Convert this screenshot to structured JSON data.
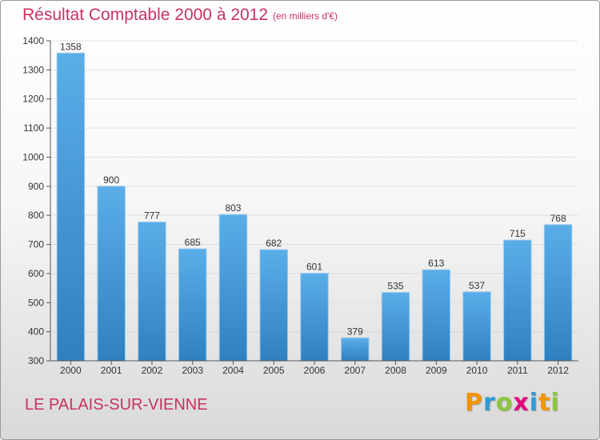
{
  "header": {
    "title": "Résultat Comptable 2000 à 2012",
    "subtitle": "(en milliers d'€)"
  },
  "footer": {
    "commune": "LE PALAIS-SUR-VIENNE",
    "logo": {
      "letters": [
        "P",
        "r",
        "o",
        "x",
        "i",
        "t",
        "i"
      ],
      "colors": [
        "#f29400",
        "#2c9bd6",
        "#8cc63f",
        "#e4007c",
        "#2c9bd6",
        "#f29400",
        "#8cc63f"
      ]
    }
  },
  "colors": {
    "accent": "#c8325e",
    "bar_light": "#5aaee8",
    "bar_dark": "#2f80c0"
  },
  "chart_data": {
    "type": "bar",
    "title": "Résultat Comptable 2000 à 2012",
    "subtitle": "(en milliers d'€)",
    "categories": [
      "2000",
      "2001",
      "2002",
      "2003",
      "2004",
      "2005",
      "2006",
      "2007",
      "2008",
      "2009",
      "2010",
      "2011",
      "2012"
    ],
    "values": [
      1358,
      900,
      777,
      685,
      803,
      682,
      601,
      379,
      535,
      613,
      537,
      715,
      768
    ],
    "ylim": [
      300,
      1400
    ],
    "yticks": [
      300,
      400,
      500,
      600,
      700,
      800,
      900,
      1000,
      1100,
      1200,
      1300,
      1400
    ],
    "grid": true,
    "data_labels": true,
    "xlabel": "",
    "ylabel": ""
  }
}
